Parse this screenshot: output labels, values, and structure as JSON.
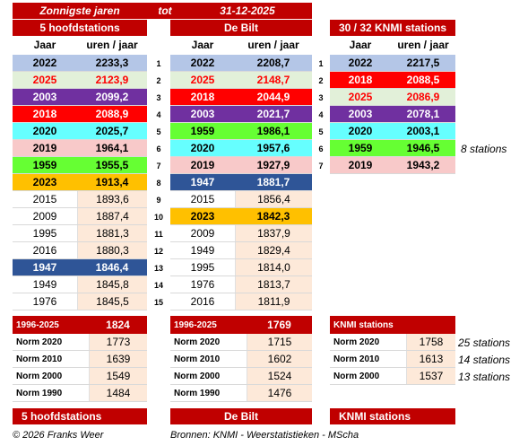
{
  "header": {
    "title": "Zonnigste jaren",
    "tot": "tot",
    "date": "31-12-2025",
    "station_5": "5 hoofdstations",
    "station_debilt": "De Bilt",
    "station_knmi": "30 / 32  KNMI stations"
  },
  "columns": {
    "year": "Jaar",
    "value": "uren / jaar"
  },
  "ranks": [
    "1",
    "2",
    "3",
    "4",
    "5",
    "6",
    "7",
    "8",
    "9",
    "10",
    "11",
    "12",
    "13",
    "14",
    "15"
  ],
  "colors": {
    "lavender": "#b4c6e7",
    "lightgreen": "#e2f0d9",
    "purple": "#7030a0",
    "red": "#ff0000",
    "cyan": "#66ffff",
    "pink": "#f8c9c9",
    "green": "#66ff33",
    "gold": "#ffc000",
    "steel": "#2f5597",
    "white": "#ffffff",
    "peach": "#fde9d9"
  },
  "table5": [
    {
      "year": "2022",
      "value": "2233,3",
      "color": "lavender",
      "text": "#000000",
      "highlight": true
    },
    {
      "year": "2025",
      "value": "2123,9",
      "color": "lightgreen",
      "text": "#ff0000",
      "highlight": true
    },
    {
      "year": "2003",
      "value": "2099,2",
      "color": "purple",
      "text": "#ffffff",
      "highlight": true
    },
    {
      "year": "2018",
      "value": "2088,9",
      "color": "red",
      "text": "#ffffff",
      "highlight": true
    },
    {
      "year": "2020",
      "value": "2025,7",
      "color": "cyan",
      "text": "#000000",
      "highlight": true
    },
    {
      "year": "2019",
      "value": "1964,1",
      "color": "pink",
      "text": "#000000",
      "highlight": true
    },
    {
      "year": "1959",
      "value": "1955,5",
      "color": "green",
      "text": "#000000",
      "highlight": true
    },
    {
      "year": "2023",
      "value": "1913,4",
      "color": "gold",
      "text": "#000000",
      "highlight": true
    },
    {
      "year": "2015",
      "value": "1893,6",
      "color": "white",
      "text": "#000000",
      "highlight": false
    },
    {
      "year": "2009",
      "value": "1887,4",
      "color": "white",
      "text": "#000000",
      "highlight": false
    },
    {
      "year": "1995",
      "value": "1881,3",
      "color": "white",
      "text": "#000000",
      "highlight": false
    },
    {
      "year": "2016",
      "value": "1880,3",
      "color": "white",
      "text": "#000000",
      "highlight": false
    },
    {
      "year": "1947",
      "value": "1846,4",
      "color": "steel",
      "text": "#ffffff",
      "highlight": true
    },
    {
      "year": "1949",
      "value": "1845,8",
      "color": "white",
      "text": "#000000",
      "highlight": false
    },
    {
      "year": "1976",
      "value": "1845,5",
      "color": "white",
      "text": "#000000",
      "highlight": false
    }
  ],
  "tableDeBilt": [
    {
      "year": "2022",
      "value": "2208,7",
      "color": "lavender",
      "text": "#000000",
      "highlight": true
    },
    {
      "year": "2025",
      "value": "2148,7",
      "color": "lightgreen",
      "text": "#ff0000",
      "highlight": true
    },
    {
      "year": "2018",
      "value": "2044,9",
      "color": "red",
      "text": "#ffffff",
      "highlight": true
    },
    {
      "year": "2003",
      "value": "2021,7",
      "color": "purple",
      "text": "#ffffff",
      "highlight": true
    },
    {
      "year": "1959",
      "value": "1986,1",
      "color": "green",
      "text": "#000000",
      "highlight": true
    },
    {
      "year": "2020",
      "value": "1957,6",
      "color": "cyan",
      "text": "#000000",
      "highlight": true
    },
    {
      "year": "2019",
      "value": "1927,9",
      "color": "pink",
      "text": "#000000",
      "highlight": true
    },
    {
      "year": "1947",
      "value": "1881,7",
      "color": "steel",
      "text": "#ffffff",
      "highlight": true
    },
    {
      "year": "2015",
      "value": "1856,4",
      "color": "white",
      "text": "#000000",
      "highlight": false
    },
    {
      "year": "2023",
      "value": "1842,3",
      "color": "gold",
      "text": "#000000",
      "highlight": true
    },
    {
      "year": "2009",
      "value": "1837,9",
      "color": "white",
      "text": "#000000",
      "highlight": false
    },
    {
      "year": "1949",
      "value": "1829,4",
      "color": "white",
      "text": "#000000",
      "highlight": false
    },
    {
      "year": "1995",
      "value": "1814,0",
      "color": "white",
      "text": "#000000",
      "highlight": false
    },
    {
      "year": "1976",
      "value": "1813,7",
      "color": "white",
      "text": "#000000",
      "highlight": false
    },
    {
      "year": "2016",
      "value": "1811,9",
      "color": "white",
      "text": "#000000",
      "highlight": false
    }
  ],
  "tableKnmi": [
    {
      "year": "2022",
      "value": "2217,5",
      "color": "lavender",
      "text": "#000000",
      "highlight": true
    },
    {
      "year": "2018",
      "value": "2088,5",
      "color": "red",
      "text": "#ffffff",
      "highlight": true
    },
    {
      "year": "2025",
      "value": "2086,9",
      "color": "lightgreen",
      "text": "#ff0000",
      "highlight": true
    },
    {
      "year": "2003",
      "value": "2078,1",
      "color": "purple",
      "text": "#ffffff",
      "highlight": true
    },
    {
      "year": "2020",
      "value": "2003,1",
      "color": "cyan",
      "text": "#000000",
      "highlight": true
    },
    {
      "year": "1959",
      "value": "1946,5",
      "color": "green",
      "text": "#000000",
      "highlight": true
    },
    {
      "year": "2019",
      "value": "1943,2",
      "color": "pink",
      "text": "#000000",
      "highlight": true
    }
  ],
  "knmi_note": "8 stations",
  "stats5": {
    "head_label": "1996-2025",
    "head_value": "1824",
    "rows": [
      {
        "label": "Norm 2020",
        "value": "1773"
      },
      {
        "label": "Norm 2010",
        "value": "1639"
      },
      {
        "label": "Norm 2000",
        "value": "1549"
      },
      {
        "label": "Norm 1990",
        "value": "1484"
      }
    ]
  },
  "statsDeBilt": {
    "head_label": "1996-2025",
    "head_value": "1769",
    "rows": [
      {
        "label": "Norm 2020",
        "value": "1715"
      },
      {
        "label": "Norm 2010",
        "value": "1602"
      },
      {
        "label": "Norm 2000",
        "value": "1524"
      },
      {
        "label": "Norm 1990",
        "value": "1476"
      }
    ]
  },
  "statsKnmi": {
    "head_label": "KNMI stations",
    "head_value": "",
    "rows": [
      {
        "label": "Norm 2020",
        "value": "1758",
        "note": "25 stations"
      },
      {
        "label": "Norm 2010",
        "value": "1613",
        "note": "14 stations"
      },
      {
        "label": "Norm 2000",
        "value": "1537",
        "note": "13 stations"
      }
    ]
  },
  "bottom": {
    "b1": "5 hoofdstations",
    "b2": "De Bilt",
    "b3": "KNMI stations"
  },
  "footer": {
    "copyright": "© 2026 Franks Weer",
    "sources": "Bronnen: KNMI - Weerstatistieken  - MScha"
  }
}
